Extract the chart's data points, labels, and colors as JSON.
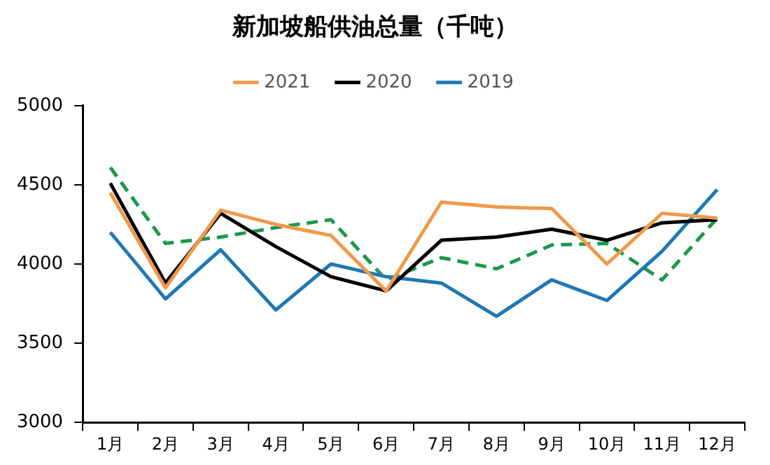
{
  "chart_data": {
    "type": "line",
    "title": "新加坡船供油总量（千吨）",
    "categories": [
      "1月",
      "2月",
      "3月",
      "4月",
      "5月",
      "6月",
      "7月",
      "8月",
      "9月",
      "10月",
      "11月",
      "12月"
    ],
    "series": [
      {
        "name": "2021",
        "color": "#f0994a",
        "values": [
          4450,
          3850,
          4340,
          4250,
          4180,
          3830,
          4390,
          4360,
          4350,
          4000,
          4320,
          4290
        ]
      },
      {
        "name": "2020",
        "color": "#000000",
        "values": [
          4510,
          3880,
          4320,
          4110,
          3920,
          3830,
          4150,
          4170,
          4220,
          4150,
          4260,
          4280
        ]
      },
      {
        "name": "2019",
        "color": "#1f77b4",
        "values": [
          4200,
          3780,
          4090,
          3710,
          4000,
          3920,
          3880,
          3670,
          3900,
          3770,
          4080,
          4470
        ]
      },
      {
        "color": "#1a9a4a",
        "line_style": "dashed",
        "values": [
          4610,
          4130,
          4170,
          4230,
          4280,
          3900,
          4040,
          3970,
          4120,
          4130,
          3900,
          4290
        ]
      }
    ],
    "ylim": [
      3000,
      5000
    ],
    "yticks": [
      3000,
      3500,
      4000,
      4500,
      5000
    ],
    "grid": false,
    "legend": "top",
    "marker": "none"
  }
}
